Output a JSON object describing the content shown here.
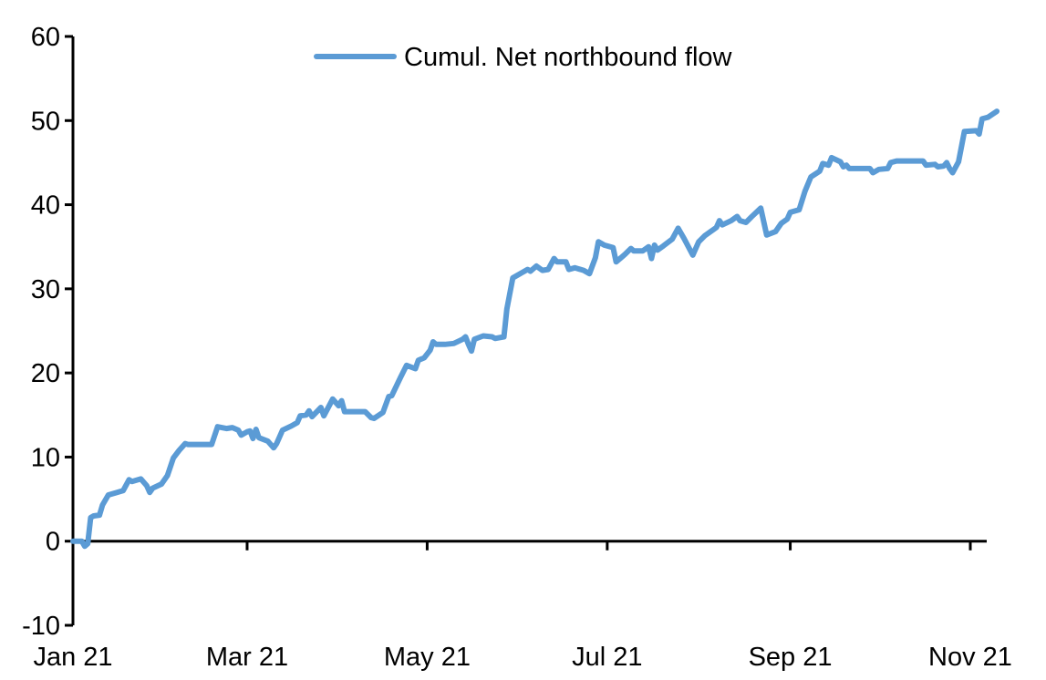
{
  "chart_data": {
    "type": "line",
    "title": "",
    "xlabel": "",
    "ylabel": "",
    "ylim": [
      -10,
      60
    ],
    "y_ticks": [
      -10,
      0,
      10,
      20,
      30,
      40,
      50,
      60
    ],
    "y_tick_labels": [
      "-10",
      "0",
      "10",
      "20",
      "30",
      "40",
      "50",
      "60"
    ],
    "x_ticks": [
      "2021-01-01",
      "2021-03-01",
      "2021-05-01",
      "2021-07-01",
      "2021-09-01",
      "2021-11-01"
    ],
    "x_tick_labels": [
      "Jan 21",
      "Mar 21",
      "May 21",
      "Jul 21",
      "Sep 21",
      "Nov 21"
    ],
    "xlim": [
      "2021-01-01",
      "2021-11-06"
    ],
    "grid": false,
    "legend_position": "top-center",
    "series": [
      {
        "name": "Cumul. Net northbound flow",
        "color": "#5B9BD5",
        "points": [
          [
            "2021-01-01",
            0.0
          ],
          [
            "2021-01-04",
            0.0
          ],
          [
            "2021-01-05",
            -0.6
          ],
          [
            "2021-01-06",
            -0.3
          ],
          [
            "2021-01-07",
            2.8
          ],
          [
            "2021-01-08",
            3.0
          ],
          [
            "2021-01-10",
            3.1
          ],
          [
            "2021-01-11",
            4.3
          ],
          [
            "2021-01-13",
            5.5
          ],
          [
            "2021-01-15",
            5.7
          ],
          [
            "2021-01-18",
            6.0
          ],
          [
            "2021-01-20",
            7.3
          ],
          [
            "2021-01-21",
            7.1
          ],
          [
            "2021-01-24",
            7.4
          ],
          [
            "2021-01-26",
            6.6
          ],
          [
            "2021-01-27",
            5.8
          ],
          [
            "2021-01-28",
            6.3
          ],
          [
            "2021-01-31",
            6.8
          ],
          [
            "2021-02-02",
            7.8
          ],
          [
            "2021-02-04",
            9.9
          ],
          [
            "2021-02-06",
            10.8
          ],
          [
            "2021-02-08",
            11.6
          ],
          [
            "2021-02-09",
            11.5
          ],
          [
            "2021-02-12",
            11.5
          ],
          [
            "2021-02-17",
            11.5
          ],
          [
            "2021-02-19",
            13.6
          ],
          [
            "2021-02-22",
            13.4
          ],
          [
            "2021-02-24",
            13.5
          ],
          [
            "2021-02-26",
            13.2
          ],
          [
            "2021-02-27",
            12.6
          ],
          [
            "2021-03-01",
            13.0
          ],
          [
            "2021-03-02",
            13.1
          ],
          [
            "2021-03-03",
            12.2
          ],
          [
            "2021-03-04",
            13.3
          ],
          [
            "2021-03-05",
            12.3
          ],
          [
            "2021-03-08",
            11.9
          ],
          [
            "2021-03-10",
            11.1
          ],
          [
            "2021-03-11",
            11.6
          ],
          [
            "2021-03-13",
            13.2
          ],
          [
            "2021-03-16",
            13.7
          ],
          [
            "2021-03-18",
            14.1
          ],
          [
            "2021-03-19",
            14.9
          ],
          [
            "2021-03-21",
            15.0
          ],
          [
            "2021-03-22",
            15.5
          ],
          [
            "2021-03-23",
            14.8
          ],
          [
            "2021-03-26",
            15.9
          ],
          [
            "2021-03-27",
            14.9
          ],
          [
            "2021-03-30",
            16.9
          ],
          [
            "2021-04-01",
            16.1
          ],
          [
            "2021-04-02",
            16.7
          ],
          [
            "2021-04-03",
            15.4
          ],
          [
            "2021-04-07",
            15.4
          ],
          [
            "2021-04-10",
            15.4
          ],
          [
            "2021-04-12",
            14.7
          ],
          [
            "2021-04-13",
            14.6
          ],
          [
            "2021-04-16",
            15.3
          ],
          [
            "2021-04-18",
            17.2
          ],
          [
            "2021-04-19",
            17.3
          ],
          [
            "2021-04-22",
            19.5
          ],
          [
            "2021-04-24",
            20.9
          ],
          [
            "2021-04-27",
            20.5
          ],
          [
            "2021-04-28",
            21.5
          ],
          [
            "2021-04-30",
            21.8
          ],
          [
            "2021-05-02",
            22.7
          ],
          [
            "2021-05-03",
            23.7
          ],
          [
            "2021-05-04",
            23.4
          ],
          [
            "2021-05-07",
            23.4
          ],
          [
            "2021-05-10",
            23.5
          ],
          [
            "2021-05-13",
            24.0
          ],
          [
            "2021-05-14",
            24.3
          ],
          [
            "2021-05-15",
            23.4
          ],
          [
            "2021-05-16",
            22.6
          ],
          [
            "2021-05-17",
            24.0
          ],
          [
            "2021-05-20",
            24.4
          ],
          [
            "2021-05-23",
            24.3
          ],
          [
            "2021-05-24",
            24.1
          ],
          [
            "2021-05-27",
            24.3
          ],
          [
            "2021-05-28",
            27.6
          ],
          [
            "2021-05-30",
            31.3
          ],
          [
            "2021-06-02",
            31.9
          ],
          [
            "2021-06-04",
            32.3
          ],
          [
            "2021-06-05",
            32.1
          ],
          [
            "2021-06-07",
            32.7
          ],
          [
            "2021-06-09",
            32.2
          ],
          [
            "2021-06-11",
            32.3
          ],
          [
            "2021-06-13",
            33.6
          ],
          [
            "2021-06-14",
            33.2
          ],
          [
            "2021-06-17",
            33.2
          ],
          [
            "2021-06-18",
            32.3
          ],
          [
            "2021-06-20",
            32.5
          ],
          [
            "2021-06-23",
            32.2
          ],
          [
            "2021-06-25",
            31.8
          ],
          [
            "2021-06-27",
            33.7
          ],
          [
            "2021-06-28",
            35.6
          ],
          [
            "2021-06-30",
            35.2
          ],
          [
            "2021-07-03",
            34.9
          ],
          [
            "2021-07-04",
            33.2
          ],
          [
            "2021-07-06",
            33.8
          ],
          [
            "2021-07-07",
            34.1
          ],
          [
            "2021-07-09",
            34.8
          ],
          [
            "2021-07-10",
            34.5
          ],
          [
            "2021-07-13",
            34.5
          ],
          [
            "2021-07-15",
            35.0
          ],
          [
            "2021-07-16",
            33.6
          ],
          [
            "2021-07-17",
            35.2
          ],
          [
            "2021-07-18",
            34.6
          ],
          [
            "2021-07-20",
            35.1
          ],
          [
            "2021-07-23",
            35.9
          ],
          [
            "2021-07-25",
            37.2
          ],
          [
            "2021-07-27",
            36.0
          ],
          [
            "2021-07-30",
            34.0
          ],
          [
            "2021-08-01",
            35.6
          ],
          [
            "2021-08-03",
            36.3
          ],
          [
            "2021-08-05",
            36.8
          ],
          [
            "2021-08-07",
            37.3
          ],
          [
            "2021-08-08",
            38.1
          ],
          [
            "2021-08-09",
            37.6
          ],
          [
            "2021-08-12",
            38.1
          ],
          [
            "2021-08-14",
            38.6
          ],
          [
            "2021-08-15",
            38.1
          ],
          [
            "2021-08-17",
            37.9
          ],
          [
            "2021-08-19",
            38.6
          ],
          [
            "2021-08-22",
            39.6
          ],
          [
            "2021-08-24",
            36.4
          ],
          [
            "2021-08-27",
            36.8
          ],
          [
            "2021-08-29",
            37.8
          ],
          [
            "2021-08-31",
            38.3
          ],
          [
            "2021-09-01",
            39.1
          ],
          [
            "2021-09-04",
            39.4
          ],
          [
            "2021-09-06",
            41.6
          ],
          [
            "2021-09-08",
            43.3
          ],
          [
            "2021-09-11",
            44.0
          ],
          [
            "2021-09-12",
            44.9
          ],
          [
            "2021-09-14",
            44.7
          ],
          [
            "2021-09-15",
            45.6
          ],
          [
            "2021-09-18",
            45.1
          ],
          [
            "2021-09-19",
            44.5
          ],
          [
            "2021-09-20",
            44.7
          ],
          [
            "2021-09-21",
            44.3
          ],
          [
            "2021-09-24",
            44.3
          ],
          [
            "2021-09-28",
            44.3
          ],
          [
            "2021-09-29",
            43.8
          ],
          [
            "2021-10-01",
            44.2
          ],
          [
            "2021-10-04",
            44.3
          ],
          [
            "2021-10-05",
            45.0
          ],
          [
            "2021-10-07",
            45.2
          ],
          [
            "2021-10-12",
            45.2
          ],
          [
            "2021-10-16",
            45.2
          ],
          [
            "2021-10-17",
            44.7
          ],
          [
            "2021-10-20",
            44.8
          ],
          [
            "2021-10-21",
            44.5
          ],
          [
            "2021-10-23",
            44.6
          ],
          [
            "2021-10-24",
            45.0
          ],
          [
            "2021-10-25",
            44.3
          ],
          [
            "2021-10-26",
            43.8
          ],
          [
            "2021-10-28",
            45.1
          ],
          [
            "2021-10-30",
            48.7
          ],
          [
            "2021-11-03",
            48.8
          ],
          [
            "2021-11-04",
            48.4
          ],
          [
            "2021-11-05",
            50.2
          ],
          [
            "2021-11-06",
            50.3
          ],
          [
            "2021-11-07",
            50.4
          ],
          [
            "2021-11-10",
            51.1
          ]
        ]
      }
    ]
  }
}
